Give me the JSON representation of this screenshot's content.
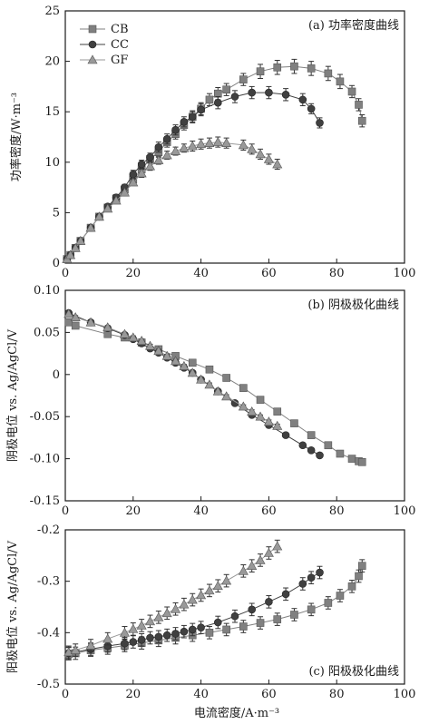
{
  "figure": {
    "xlabel": "电流密度/A·m⁻³"
  },
  "chart_data": [
    {
      "type": "line",
      "title": "(a) 功率密度曲线",
      "xlabel": "",
      "ylabel": "功率密度/W·m⁻³",
      "xlim": [
        0,
        100
      ],
      "ylim": [
        0,
        25
      ],
      "xticks": [
        "0",
        "20",
        "40",
        "60",
        "80",
        "100"
      ],
      "yticks": [
        "0",
        "5",
        "10",
        "15",
        "20",
        "25"
      ],
      "legend": {
        "placement": "top-left",
        "entries": [
          "CB",
          "CC",
          "GF"
        ]
      },
      "title_placement": "top-right",
      "series": [
        {
          "name": "CB",
          "marker": "square",
          "color": "#808080",
          "x": [
            0.5,
            1.5,
            3,
            4.5,
            7.5,
            10,
            12.5,
            15,
            17.5,
            20,
            22.5,
            25,
            27.5,
            30,
            32.5,
            35,
            37.5,
            40,
            42.5,
            45,
            47.5,
            52.5,
            57.5,
            62.5,
            67.5,
            72.5,
            77.5,
            81,
            84.5,
            86.5,
            87.5
          ],
          "y": [
            0.4,
            0.8,
            1.5,
            2.2,
            3.5,
            4.6,
            5.5,
            6.4,
            7.3,
            8.3,
            9.3,
            10.3,
            11.0,
            12.0,
            12.8,
            13.7,
            14.5,
            15.3,
            16.2,
            16.8,
            17.2,
            18.2,
            19.0,
            19.4,
            19.5,
            19.3,
            18.8,
            18.0,
            17.0,
            15.7,
            14.1
          ],
          "err": [
            0.1,
            0.1,
            0.1,
            0.1,
            0.2,
            0.2,
            0.2,
            0.3,
            0.3,
            0.4,
            0.4,
            0.4,
            0.5,
            0.5,
            0.5,
            0.5,
            0.6,
            0.6,
            0.6,
            0.6,
            0.6,
            0.6,
            0.7,
            0.7,
            0.7,
            0.7,
            0.7,
            0.7,
            0.6,
            0.6,
            0.6
          ]
        },
        {
          "name": "CC",
          "marker": "circle",
          "color": "#404040",
          "x": [
            0.5,
            1.5,
            3,
            4.5,
            7.5,
            10,
            12.5,
            15,
            17.5,
            20,
            22.5,
            25,
            27.5,
            30,
            32.5,
            35,
            37.5,
            40,
            45,
            50,
            55,
            60,
            65,
            70,
            72.5,
            75
          ],
          "y": [
            0.4,
            0.8,
            1.5,
            2.2,
            3.5,
            4.6,
            5.6,
            6.5,
            7.5,
            8.8,
            9.8,
            10.5,
            11.5,
            12.3,
            13.2,
            14.0,
            14.5,
            15.2,
            15.9,
            16.5,
            16.9,
            16.9,
            16.7,
            16.2,
            15.3,
            13.9
          ],
          "err": [
            0.1,
            0.1,
            0.1,
            0.1,
            0.2,
            0.2,
            0.2,
            0.3,
            0.3,
            0.4,
            0.4,
            0.4,
            0.5,
            0.5,
            0.5,
            0.5,
            0.5,
            0.6,
            0.6,
            0.6,
            0.6,
            0.6,
            0.6,
            0.6,
            0.5,
            0.5
          ]
        },
        {
          "name": "GF",
          "marker": "triangle",
          "color": "#999999",
          "x": [
            0.5,
            1.5,
            3,
            4.5,
            7.5,
            10,
            12.5,
            15,
            17.5,
            20,
            22.5,
            25,
            27.5,
            30,
            32.5,
            35,
            37.5,
            40,
            42.5,
            45,
            47.5,
            52.5,
            55,
            57.5,
            60,
            62.5
          ],
          "y": [
            0.4,
            0.8,
            1.5,
            2.2,
            3.5,
            4.6,
            5.4,
            6.2,
            7.0,
            8.0,
            8.9,
            9.6,
            10.2,
            10.7,
            11.1,
            11.4,
            11.6,
            11.8,
            11.9,
            12.0,
            11.9,
            11.7,
            11.3,
            10.8,
            10.3,
            9.8
          ],
          "err": [
            0.1,
            0.1,
            0.1,
            0.1,
            0.2,
            0.2,
            0.2,
            0.3,
            0.3,
            0.3,
            0.4,
            0.4,
            0.4,
            0.4,
            0.4,
            0.4,
            0.5,
            0.5,
            0.5,
            0.5,
            0.5,
            0.5,
            0.5,
            0.5,
            0.5,
            0.5
          ]
        }
      ]
    },
    {
      "type": "line",
      "title": "(b) 阴极极化曲线",
      "xlabel": "",
      "ylabel": "阴极电位 vs. Ag/AgCl/V",
      "xlim": [
        0,
        100
      ],
      "ylim": [
        -0.15,
        0.1
      ],
      "xticks": [
        "0",
        "20",
        "40",
        "60",
        "80",
        "100"
      ],
      "yticks": [
        "0.10",
        "0.05",
        "0",
        "-0.05",
        "-0.10",
        "-0.15"
      ],
      "title_placement": "top-right",
      "series": [
        {
          "name": "CB",
          "marker": "square",
          "color": "#808080",
          "x": [
            1,
            3,
            12.5,
            17.5,
            22.5,
            27.5,
            32.5,
            37.5,
            42.5,
            47.5,
            52.5,
            57.5,
            62.5,
            67.5,
            72.5,
            77.5,
            81,
            84.5,
            86.5,
            87.5
          ],
          "y": [
            0.062,
            0.058,
            0.048,
            0.044,
            0.038,
            0.03,
            0.022,
            0.014,
            0.006,
            -0.004,
            -0.016,
            -0.03,
            -0.044,
            -0.058,
            -0.072,
            -0.084,
            -0.094,
            -0.1,
            -0.103,
            -0.104
          ],
          "err": [
            0.002,
            0.002,
            0.002,
            0.002,
            0.002,
            0.002,
            0.002,
            0.002,
            0.002,
            0.002,
            0.002,
            0.002,
            0.002,
            0.002,
            0.002,
            0.002,
            0.002,
            0.002,
            0.002,
            0.002
          ]
        },
        {
          "name": "CC",
          "marker": "circle",
          "color": "#404040",
          "x": [
            1,
            7.5,
            12.5,
            17.5,
            20,
            22.5,
            25,
            27.5,
            30,
            32.5,
            35,
            37.5,
            40,
            45,
            50,
            55,
            60,
            65,
            70,
            72.5,
            75
          ],
          "y": [
            0.073,
            0.062,
            0.055,
            0.047,
            0.042,
            0.037,
            0.031,
            0.026,
            0.02,
            0.014,
            0.008,
            0.002,
            -0.006,
            -0.02,
            -0.034,
            -0.048,
            -0.06,
            -0.072,
            -0.084,
            -0.09,
            -0.096
          ],
          "err": [
            0.002,
            0.002,
            0.002,
            0.002,
            0.002,
            0.002,
            0.002,
            0.002,
            0.002,
            0.002,
            0.002,
            0.002,
            0.002,
            0.002,
            0.002,
            0.002,
            0.002,
            0.002,
            0.002,
            0.002,
            0.002
          ]
        },
        {
          "name": "GF",
          "marker": "triangle",
          "color": "#999999",
          "x": [
            1,
            3,
            7.5,
            12.5,
            17.5,
            20,
            22.5,
            25,
            27.5,
            30,
            32.5,
            35,
            37.5,
            40,
            42.5,
            45,
            47.5,
            52.5,
            55,
            57.5,
            60,
            62.5
          ],
          "y": [
            0.072,
            0.068,
            0.062,
            0.056,
            0.048,
            0.044,
            0.04,
            0.034,
            0.028,
            0.022,
            0.016,
            0.01,
            0.002,
            -0.006,
            -0.012,
            -0.02,
            -0.026,
            -0.038,
            -0.044,
            -0.05,
            -0.056,
            -0.061
          ],
          "err": [
            0.002,
            0.002,
            0.002,
            0.002,
            0.002,
            0.002,
            0.002,
            0.002,
            0.002,
            0.002,
            0.002,
            0.002,
            0.002,
            0.002,
            0.002,
            0.002,
            0.002,
            0.002,
            0.002,
            0.002,
            0.002,
            0.002
          ]
        }
      ]
    },
    {
      "type": "line",
      "title": "(c) 阳极极化曲线",
      "xlabel": "",
      "ylabel": "阳极电位 vs. Ag/AgCl/V",
      "xlim": [
        0,
        100
      ],
      "ylim": [
        -0.5,
        -0.2
      ],
      "xticks": [
        "0",
        "20",
        "40",
        "60",
        "80",
        "100"
      ],
      "yticks": [
        "-0.2",
        "-0.3",
        "-0.4",
        "-0.5"
      ],
      "title_placement": "bottom-right",
      "series": [
        {
          "name": "CB",
          "marker": "square",
          "color": "#808080",
          "x": [
            1,
            3,
            7.5,
            12.5,
            17.5,
            22.5,
            27.5,
            32.5,
            37.5,
            42.5,
            47.5,
            52.5,
            57.5,
            62.5,
            67.5,
            72.5,
            77.5,
            81,
            84.5,
            86.5,
            87.5
          ],
          "y": [
            -0.441,
            -0.44,
            -0.434,
            -0.43,
            -0.425,
            -0.42,
            -0.415,
            -0.41,
            -0.405,
            -0.4,
            -0.394,
            -0.388,
            -0.381,
            -0.374,
            -0.365,
            -0.355,
            -0.342,
            -0.328,
            -0.31,
            -0.29,
            -0.27
          ],
          "err": [
            0.012,
            0.012,
            0.012,
            0.012,
            0.012,
            0.012,
            0.012,
            0.012,
            0.012,
            0.012,
            0.012,
            0.012,
            0.012,
            0.012,
            0.012,
            0.012,
            0.012,
            0.012,
            0.012,
            0.012,
            0.012
          ]
        },
        {
          "name": "CC",
          "marker": "circle",
          "color": "#404040",
          "x": [
            1,
            7.5,
            12.5,
            17.5,
            20,
            22.5,
            25,
            27.5,
            30,
            32.5,
            35,
            37.5,
            40,
            45,
            50,
            55,
            60,
            65,
            70,
            72.5,
            75
          ],
          "y": [
            -0.44,
            -0.432,
            -0.426,
            -0.421,
            -0.418,
            -0.414,
            -0.41,
            -0.408,
            -0.405,
            -0.402,
            -0.398,
            -0.394,
            -0.39,
            -0.38,
            -0.368,
            -0.355,
            -0.34,
            -0.325,
            -0.305,
            -0.293,
            -0.283
          ],
          "err": [
            0.012,
            0.012,
            0.012,
            0.012,
            0.012,
            0.012,
            0.012,
            0.012,
            0.012,
            0.012,
            0.012,
            0.012,
            0.012,
            0.012,
            0.012,
            0.012,
            0.012,
            0.012,
            0.012,
            0.012,
            0.012
          ]
        },
        {
          "name": "GF",
          "marker": "triangle",
          "color": "#999999",
          "x": [
            1,
            3,
            7.5,
            12.5,
            17.5,
            20,
            22.5,
            25,
            27.5,
            30,
            32.5,
            35,
            37.5,
            40,
            42.5,
            45,
            47.5,
            52.5,
            55,
            57.5,
            60,
            62.5
          ],
          "y": [
            -0.438,
            -0.434,
            -0.425,
            -0.412,
            -0.4,
            -0.393,
            -0.386,
            -0.378,
            -0.37,
            -0.362,
            -0.354,
            -0.345,
            -0.336,
            -0.327,
            -0.318,
            -0.309,
            -0.299,
            -0.28,
            -0.27,
            -0.259,
            -0.245,
            -0.232
          ],
          "err": [
            0.012,
            0.012,
            0.012,
            0.012,
            0.012,
            0.012,
            0.012,
            0.012,
            0.012,
            0.012,
            0.012,
            0.012,
            0.012,
            0.012,
            0.012,
            0.012,
            0.012,
            0.012,
            0.012,
            0.012,
            0.012,
            0.012
          ]
        }
      ]
    }
  ]
}
